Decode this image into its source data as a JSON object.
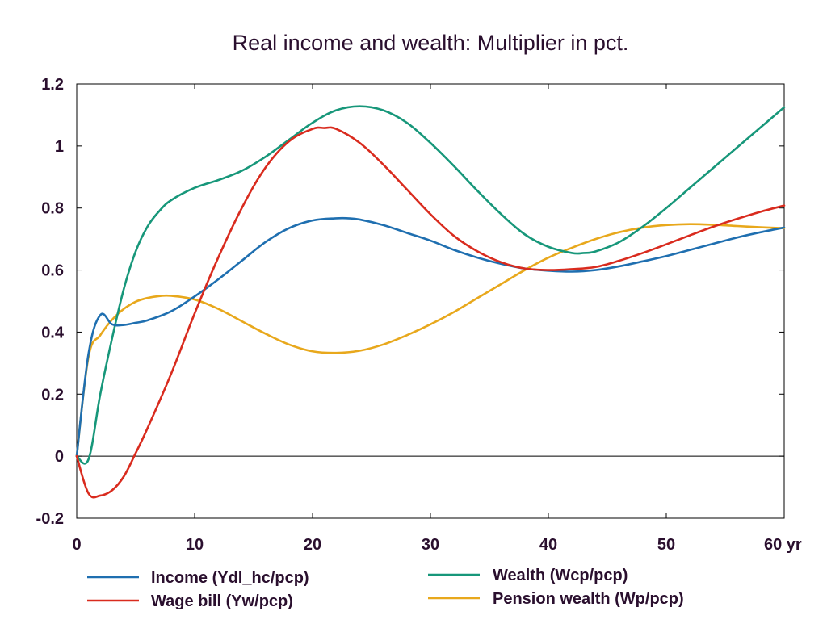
{
  "chart_data": {
    "type": "line",
    "title": "Real income and wealth: Multiplier in pct.",
    "xlabel": "",
    "ylabel": "",
    "xlim": [
      0,
      60
    ],
    "ylim": [
      -0.2,
      1.2
    ],
    "x_ticks": [
      0,
      10,
      20,
      30,
      40,
      50,
      60
    ],
    "x_tick_labels": [
      "0",
      "10",
      "20",
      "30",
      "40",
      "50",
      "60 yr"
    ],
    "y_ticks": [
      -0.2,
      0,
      0.2,
      0.4,
      0.6,
      0.8,
      1,
      1.2
    ],
    "y_tick_labels": [
      "-0.2",
      "0",
      "0.2",
      "0.4",
      "0.6",
      "0.8",
      "1",
      "1.2"
    ],
    "zero_line": true,
    "grid": false,
    "legend_position": "bottom",
    "series": [
      {
        "name": "Income (Ydl_hc/pcp)",
        "color": "#1f6fb0",
        "x": [
          0,
          1,
          2,
          3,
          4,
          5,
          6,
          8,
          10,
          12,
          14,
          16,
          18,
          20,
          22,
          23,
          24,
          26,
          28,
          30,
          32,
          34,
          36,
          38,
          40,
          42,
          44,
          46,
          48,
          50,
          52,
          54,
          56,
          58,
          60
        ],
        "y": [
          0,
          0.33,
          0.455,
          0.425,
          0.423,
          0.43,
          0.438,
          0.467,
          0.515,
          0.57,
          0.63,
          0.69,
          0.735,
          0.76,
          0.767,
          0.767,
          0.763,
          0.745,
          0.72,
          0.695,
          0.665,
          0.64,
          0.62,
          0.605,
          0.598,
          0.595,
          0.6,
          0.612,
          0.628,
          0.645,
          0.665,
          0.685,
          0.705,
          0.722,
          0.737
        ]
      },
      {
        "name": "Wage bill (Yw/pcp)",
        "color": "#d92b1e",
        "x": [
          0,
          1,
          2,
          3,
          4,
          5,
          6,
          8,
          10,
          12,
          14,
          16,
          18,
          20,
          21,
          22,
          24,
          26,
          28,
          30,
          32,
          34,
          36,
          38,
          40,
          42,
          44,
          46,
          48,
          50,
          52,
          54,
          56,
          58,
          60
        ],
        "y": [
          0,
          -0.12,
          -0.127,
          -0.11,
          -0.065,
          0.01,
          0.09,
          0.265,
          0.46,
          0.64,
          0.8,
          0.93,
          1.015,
          1.055,
          1.058,
          1.055,
          1.01,
          0.94,
          0.86,
          0.78,
          0.71,
          0.66,
          0.625,
          0.605,
          0.6,
          0.603,
          0.61,
          0.63,
          0.655,
          0.683,
          0.712,
          0.74,
          0.765,
          0.788,
          0.808
        ]
      },
      {
        "name": "Wealth (Wcp/pcp)",
        "color": "#17977a",
        "x": [
          0,
          1,
          2,
          3,
          4,
          5,
          6,
          7,
          8,
          10,
          12,
          14,
          16,
          18,
          20,
          22,
          24,
          26,
          28,
          30,
          32,
          34,
          36,
          38,
          40,
          42,
          43,
          44,
          46,
          48,
          50,
          52,
          54,
          56,
          58,
          60
        ],
        "y": [
          0,
          -0.01,
          0.2,
          0.38,
          0.54,
          0.66,
          0.74,
          0.79,
          0.825,
          0.865,
          0.89,
          0.92,
          0.965,
          1.02,
          1.075,
          1.115,
          1.128,
          1.115,
          1.075,
          1.01,
          0.935,
          0.855,
          0.78,
          0.715,
          0.675,
          0.655,
          0.655,
          0.66,
          0.69,
          0.74,
          0.8,
          0.865,
          0.93,
          0.995,
          1.06,
          1.125
        ]
      },
      {
        "name": "Pension wealth (Wp/pcp)",
        "color": "#e8a81c",
        "x": [
          0,
          1,
          2,
          3,
          4,
          5,
          6,
          7,
          8,
          10,
          12,
          14,
          16,
          18,
          20,
          22,
          24,
          26,
          28,
          30,
          32,
          34,
          36,
          38,
          40,
          42,
          44,
          46,
          48,
          50,
          52,
          54,
          56,
          58,
          60
        ],
        "y": [
          0,
          0.32,
          0.39,
          0.44,
          0.475,
          0.498,
          0.51,
          0.516,
          0.517,
          0.505,
          0.475,
          0.435,
          0.395,
          0.36,
          0.338,
          0.333,
          0.34,
          0.36,
          0.39,
          0.425,
          0.465,
          0.51,
          0.555,
          0.6,
          0.64,
          0.672,
          0.7,
          0.722,
          0.737,
          0.745,
          0.748,
          0.746,
          0.742,
          0.738,
          0.735
        ]
      }
    ]
  }
}
